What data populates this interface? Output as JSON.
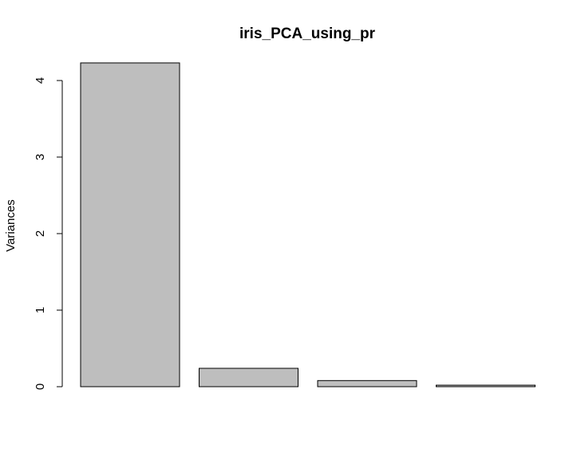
{
  "chart_data": {
    "type": "bar",
    "title": "iris_PCA_using_pr",
    "xlabel": "",
    "ylabel": "Variances",
    "ylim": [
      0,
      4.4
    ],
    "yticks": [
      0,
      1,
      2,
      3,
      4
    ],
    "values": [
      4.23,
      0.24,
      0.08,
      0.02
    ],
    "bar_color": "#bebebe",
    "bar_border_color": "#000000",
    "grid": false,
    "legend": "none"
  }
}
